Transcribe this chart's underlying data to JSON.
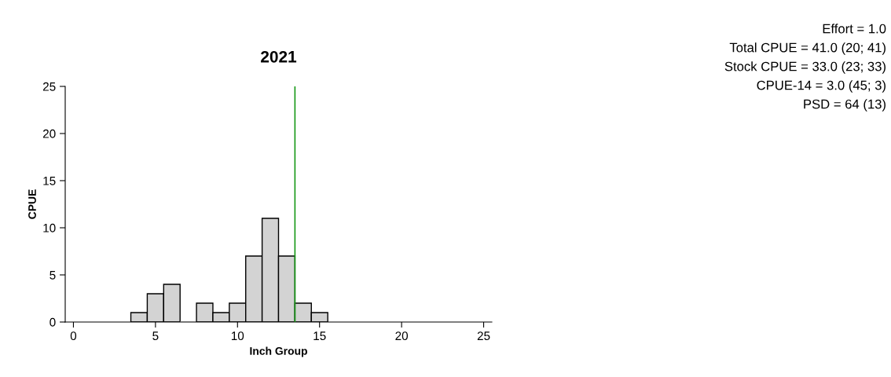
{
  "chart_data": {
    "type": "histogram",
    "title": "2021",
    "xlabel": "Inch Group",
    "ylabel": "CPUE",
    "bins": [
      3.5,
      4.5,
      5.5,
      6.5,
      7.5,
      8.5,
      9.5,
      10.5,
      11.5,
      12.5,
      13.5,
      14.5,
      15.5
    ],
    "values": [
      1,
      3,
      4,
      0,
      2,
      1,
      2,
      7,
      11,
      7,
      2,
      1
    ],
    "color": "#d3d3d3",
    "xlim": [
      -0.5,
      25.5
    ],
    "xticks": [
      0,
      5,
      10,
      15,
      20,
      25
    ],
    "ylim": [
      0,
      25
    ],
    "yticks": [
      0,
      5,
      10,
      15,
      20,
      25
    ],
    "grid": false,
    "legend": false,
    "ref_lines": [
      {
        "axis": "x",
        "value": 13.5,
        "color": "#1a9a1a"
      }
    ],
    "annotations": [
      "Effort = 1.0",
      "Total CPUE = 41.0 (20; 41)",
      "Stock CPUE = 33.0 (23; 33)",
      "CPUE-14 = 3.0 (45; 3)",
      "PSD = 64 (13)"
    ]
  }
}
